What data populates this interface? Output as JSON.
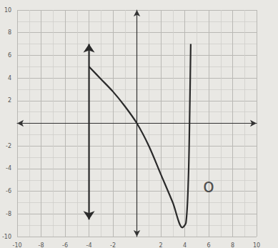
{
  "chart_data": {
    "type": "line",
    "xlim": [
      -10,
      10
    ],
    "xticks": [
      -10,
      -8,
      -6,
      -4,
      -2,
      2,
      4,
      6,
      8,
      10
    ],
    "ylim": [
      -10,
      10
    ],
    "yticks": [
      -10,
      -8,
      -6,
      -4,
      -2,
      2,
      4,
      6,
      8,
      10
    ],
    "grid": true,
    "series": [
      {
        "color": "#2a2a2a",
        "line_style": "solid",
        "marker": "none",
        "x": [
          -4,
          -3,
          -2,
          -1,
          0,
          1,
          2,
          3,
          3.8,
          4.1,
          4.3,
          4.4,
          4.5
        ],
        "values": [
          5,
          3.9,
          2.8,
          1.5,
          0,
          -2,
          -4.5,
          -7,
          -9.2,
          -8.8,
          -5,
          0,
          7
        ]
      },
      {
        "color": "#2a2a2a",
        "line_style": "solid",
        "marker": "arrow",
        "x": [
          -4,
          -4
        ],
        "values": [
          7,
          -8.5
        ]
      }
    ],
    "annotations": [
      {
        "text": "o",
        "x": 6,
        "y": -5.5
      }
    ]
  }
}
